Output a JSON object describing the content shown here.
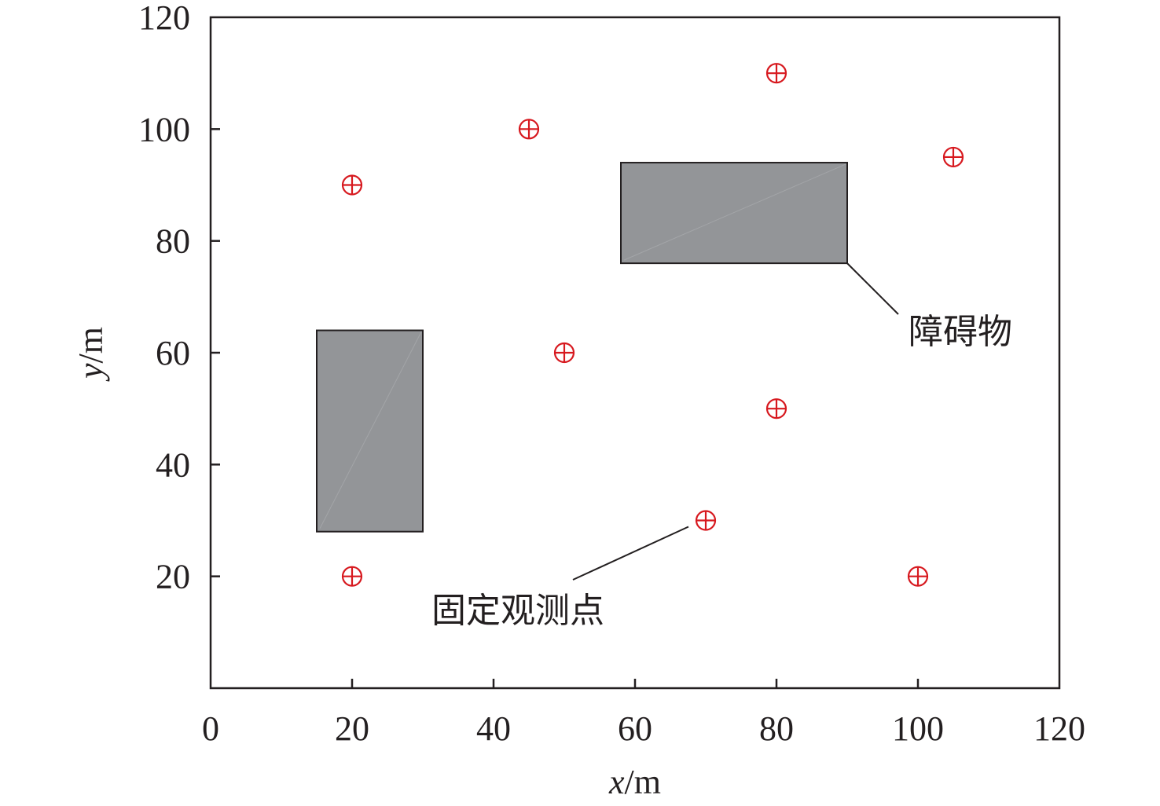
{
  "chart_data": {
    "type": "scatter",
    "xlabel": {
      "var": "x",
      "unit": "/m"
    },
    "ylabel": {
      "var": "y",
      "unit": "/m"
    },
    "xlim": [
      0,
      120
    ],
    "ylim": [
      0,
      120
    ],
    "x_ticks": [
      "0",
      "20",
      "40",
      "60",
      "80",
      "100",
      "120"
    ],
    "y_ticks": [
      "20",
      "40",
      "60",
      "80",
      "100",
      "120"
    ],
    "grid": false,
    "series": [
      {
        "marker": "circle-plus",
        "color": "#d7191f",
        "points": [
          {
            "x": 20,
            "y": 90
          },
          {
            "x": 45,
            "y": 100
          },
          {
            "x": 80,
            "y": 110
          },
          {
            "x": 105,
            "y": 95
          },
          {
            "x": 50,
            "y": 60
          },
          {
            "x": 80,
            "y": 50
          },
          {
            "x": 70,
            "y": 30
          },
          {
            "x": 20,
            "y": 20
          },
          {
            "x": 100,
            "y": 20
          }
        ]
      }
    ],
    "obstacles": [
      {
        "x0": 15,
        "x1": 30,
        "y0": 28,
        "y1": 64,
        "color": "#939598"
      },
      {
        "x0": 58,
        "x1": 90,
        "y0": 76,
        "y1": 94,
        "color": "#939598"
      }
    ],
    "annotations": [
      {
        "text": "障碍物",
        "target": {
          "x": 90,
          "y": 76
        }
      },
      {
        "text": "固定观测点",
        "target": {
          "x": 70,
          "y": 30
        }
      }
    ]
  }
}
